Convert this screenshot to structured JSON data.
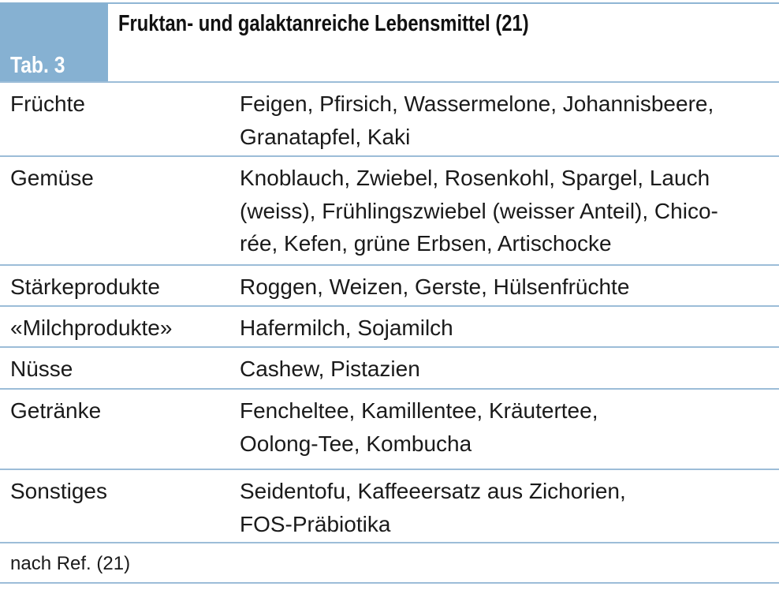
{
  "table": {
    "label": "Tab. 3",
    "title": "Fruktan- und galaktanreiche Lebensmittel (21)",
    "rows": [
      {
        "category": "Früchte",
        "foods": "Feigen, Pfirsich, Wassermelone, Johannisbeere,\nGranatapfel, Kaki"
      },
      {
        "category": "Gemüse",
        "foods": "Knoblauch, Zwiebel, Rosenkohl, Spargel, Lauch\n(weiss), Frühlingszwiebel (weisser Anteil), Chico-\nrée, Kefen, grüne Erbsen, Artischocke"
      },
      {
        "category": "Stärkeprodukte",
        "foods": "Roggen, Weizen, Gerste, Hülsenfrüchte"
      },
      {
        "category": "«Milchprodukte»",
        "foods": "Hafermilch, Sojamilch"
      },
      {
        "category": "Nüsse",
        "foods": "Cashew, Pistazien"
      },
      {
        "category": "Getränke",
        "foods": "Fencheltee, Kamillentee, Kräutertee,\nOolong-Tee, Kombucha"
      },
      {
        "category": "Sonstiges",
        "foods": "Seidentofu, Kaffeeersatz aus Zichorien,\nFOS-Präbiotika"
      }
    ],
    "footnote": "nach Ref. (21)"
  }
}
